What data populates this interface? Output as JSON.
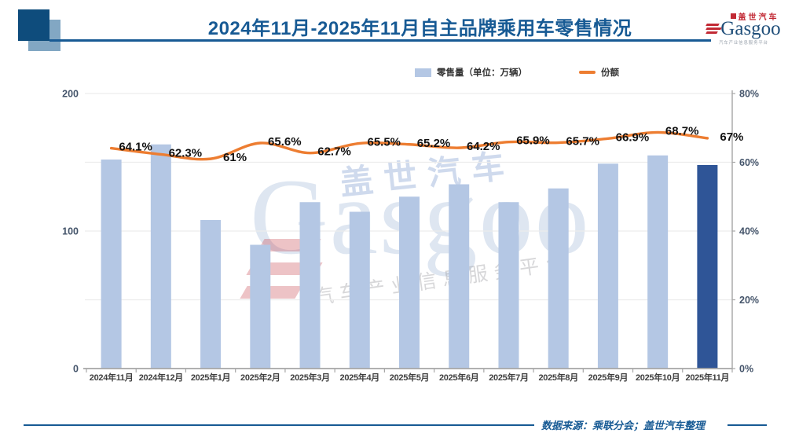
{
  "header": {
    "title": "2024年11月-2025年11月自主品牌乘用车零售情况",
    "logo": {
      "cn": "盖世汽车",
      "en": "Gasgoo",
      "tagline": "汽车产业信息服务平台"
    }
  },
  "legend": {
    "bar_label": "零售量（单位：万辆）",
    "line_label": "份额"
  },
  "watermark": {
    "cn": "盖世汽车",
    "en": "Gasgoo",
    "tagline": "汽车产业信息服务平台"
  },
  "footer": {
    "source": "数据来源：乘联分会；盖世汽车整理"
  },
  "colors": {
    "bar": "#B4C7E4",
    "bar_highlight": "#2F5597",
    "line": "#ED7D31",
    "title_blue": "#175A94",
    "axis_text": "#44546A",
    "x_text": "#404040",
    "grid": "#ECECEC",
    "axis_line": "#A6A6A6",
    "label_text": "#111111"
  },
  "chart_data": {
    "type": "bar",
    "title": "2024年11月-2025年11月自主品牌乘用车零售情况",
    "categories": [
      "2024年11月",
      "2024年12月",
      "2025年1月",
      "2025年2月",
      "2025年3月",
      "2025年4月",
      "2025年5月",
      "2025年6月",
      "2025年7月",
      "2025年8月",
      "2025年9月",
      "2025年10月",
      "2025年11月"
    ],
    "series": [
      {
        "name": "零售量（单位：万辆）",
        "type": "bar",
        "axis": "left",
        "values": [
          152,
          163,
          108,
          90,
          121,
          114,
          125,
          134,
          121,
          131,
          149,
          155,
          148
        ],
        "highlight_last_bar": true
      },
      {
        "name": "份额",
        "type": "line",
        "axis": "right",
        "values": [
          64.1,
          62.3,
          61,
          65.6,
          62.7,
          65.5,
          65.2,
          64.2,
          65.9,
          65.7,
          66.9,
          68.7,
          67
        ],
        "point_labels": [
          "64.1%",
          "62.3%",
          "61%",
          "65.6%",
          "62.7%",
          "65.5%",
          "65.2%",
          "64.2%",
          "65.9%",
          "65.7%",
          "66.9%",
          "68.7%",
          "67%"
        ]
      }
    ],
    "left_axis": {
      "min": 0,
      "max": 200,
      "ticks": [
        0,
        100,
        200
      ]
    },
    "right_axis": {
      "min": 0,
      "max": 80,
      "ticks": [
        "0%",
        "20%",
        "40%",
        "60%",
        "80%"
      ],
      "tick_values": [
        0,
        20,
        40,
        60,
        80
      ]
    },
    "grid": true,
    "legend_position": "top"
  }
}
